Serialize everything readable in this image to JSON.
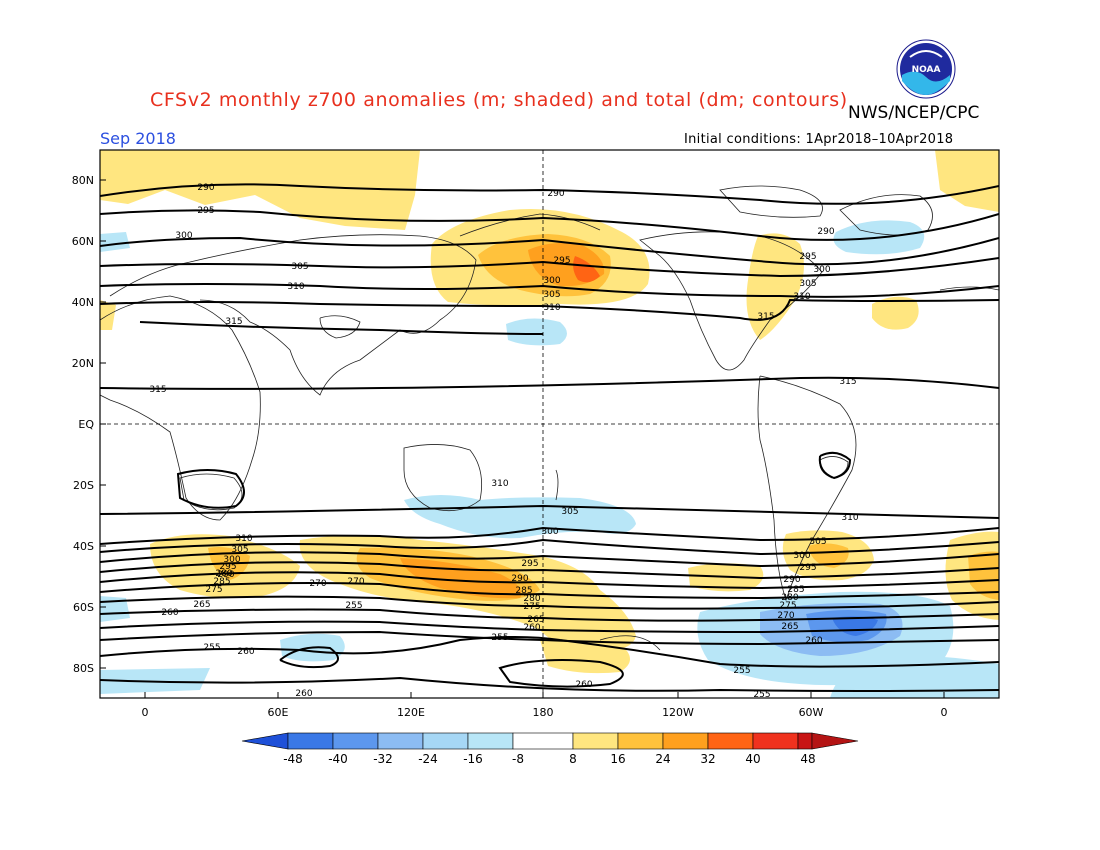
{
  "title": "CFSv2 monthly z700 anomalies (m; shaded) and total (dm; contours)",
  "organization": "NWS/NCEP/CPC",
  "logo_text": "NOAA",
  "month_label": "Sep 2018",
  "initial_conditions": "Initial conditions: 1Apr2018–10Apr2018",
  "map": {
    "lat_labels": [
      "80N",
      "60N",
      "40N",
      "20N",
      "EQ",
      "20S",
      "40S",
      "60S",
      "80S"
    ],
    "lon_labels": [
      "0",
      "60E",
      "120E",
      "180",
      "120W",
      "60W",
      "0"
    ]
  },
  "colorbar": {
    "labels": [
      "-48",
      "-40",
      "-32",
      "-24",
      "-16",
      "-8",
      "8",
      "16",
      "24",
      "32",
      "40",
      "48"
    ],
    "colors": [
      "#1e50d8",
      "#3a78e6",
      "#5c97ee",
      "#8cbcf3",
      "#b8e6f7",
      "#ffffff",
      "#ffe680",
      "#ffc23c",
      "#ffa01e",
      "#ff6414",
      "#f0321e",
      "#c81414"
    ],
    "left_arrow_color": "#1e50d8",
    "right_arrow_color": "#b41414"
  },
  "anomaly_colors": {
    "pos8": "#ffe680",
    "pos16": "#ffc23c",
    "pos24": "#ffa01e",
    "pos32": "#ff6414",
    "neg8": "#b8e6f7",
    "neg16": "#8cbcf3",
    "neg24": "#5c97ee",
    "neg32": "#3a78e6"
  },
  "contour_labels": [
    "290",
    "295",
    "300",
    "305",
    "310",
    "315",
    "290",
    "295",
    "300",
    "305",
    "310",
    "290",
    "295",
    "300",
    "305",
    "310",
    "315",
    "315",
    "315",
    "310",
    "305",
    "300",
    "295",
    "290",
    "285",
    "280",
    "275",
    "270",
    "265",
    "260",
    "255",
    "260",
    "255",
    "260",
    "255",
    "310",
    "305",
    "300",
    "295",
    "290",
    "285",
    "280",
    "275",
    "270",
    "265",
    "260",
    "255",
    "260",
    "255",
    "310",
    "305",
    "300",
    "295",
    "290",
    "285",
    "280",
    "275",
    "270",
    "265",
    "260",
    "255",
    "260",
    "265",
    "270",
    "275",
    "280",
    "285",
    "290",
    "295",
    "300",
    "305",
    "310",
    "315",
    "310",
    "305",
    "300",
    "295",
    "290",
    "285",
    "280",
    "275",
    "270",
    "265",
    "260",
    "255"
  ]
}
